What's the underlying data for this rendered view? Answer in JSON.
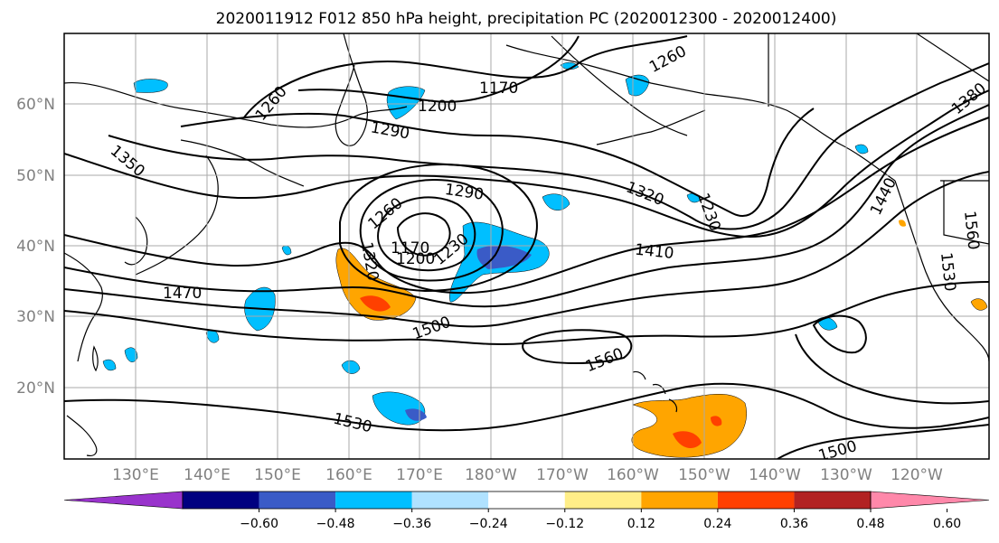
{
  "title": "2020011912 F012 850 hPa height, precipitation PC (2020012300 - 2020012400)",
  "lat_labels": [
    "60°N",
    "50°N",
    "40°N",
    "30°N",
    "20°N"
  ],
  "lon_labels": [
    "130°E",
    "140°E",
    "150°E",
    "160°E",
    "170°E",
    "180°W",
    "170°W",
    "160°W",
    "150°W",
    "140°W",
    "130°W",
    "120°W"
  ],
  "contour_labels": [
    "1260",
    "1200",
    "1170",
    "1260",
    "1290",
    "1350",
    "1290",
    "1260",
    "1320",
    "1230",
    "1380",
    "1440",
    "1560",
    "1530",
    "1320",
    "1170",
    "1200",
    "1230",
    "1410",
    "1500",
    "1560",
    "1530",
    "1500",
    "1470"
  ],
  "colorbar": {
    "tick_labels": [
      "−0.60",
      "−0.48",
      "−0.36",
      "−0.24",
      "−0.12",
      "0.12",
      "0.24",
      "0.36",
      "0.48",
      "0.60"
    ],
    "colors": [
      "#9933cc",
      "#000080",
      "#3a5bc7",
      "#00bfff",
      "#b0e2ff",
      "#ffffff",
      "#ffee88",
      "#ffa500",
      "#ff4000",
      "#b22222",
      "#ff88aa"
    ]
  },
  "colors": {
    "contour": "#000000",
    "grid": "#aaaaaa",
    "axis_label": "#808080",
    "coast": "#000000"
  }
}
